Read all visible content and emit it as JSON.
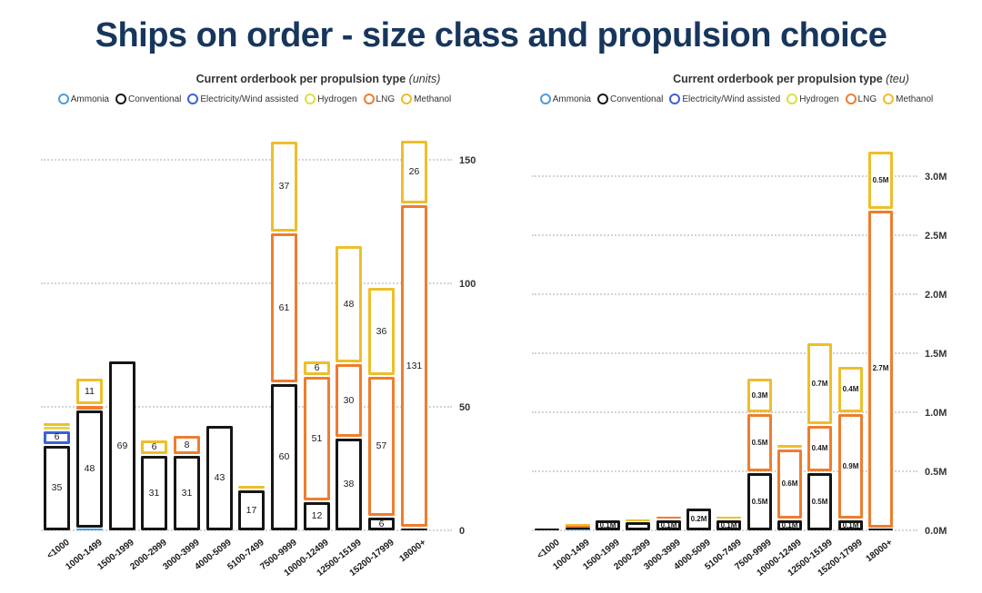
{
  "title": "Ships on order - size class and propulsion choice",
  "title_color": "#17365d",
  "series_colors": {
    "Ammonia": "#4d9bdf",
    "Conventional": "#151515",
    "Electricity/Wind assisted": "#3d62d6",
    "Hydrogen": "#dedc47",
    "LNG": "#ee7d2e",
    "Methanol": "#eebe29"
  },
  "legend": {
    "items": [
      "Ammonia",
      "Conventional",
      "Electricity/Wind assisted",
      "Hydrogen",
      "LNG",
      "Methanol"
    ]
  },
  "chart_data": [
    {
      "type": "bar",
      "stacked": true,
      "title": "Current orderbook per propulsion type",
      "unit_label": "(units)",
      "legend_position": "top",
      "grid": true,
      "ylim": [
        0,
        160
      ],
      "y_ticks": [
        {
          "v": 0,
          "label": "0"
        },
        {
          "v": 50,
          "label": "50"
        },
        {
          "v": 100,
          "label": "100"
        },
        {
          "v": 150,
          "label": "150"
        }
      ],
      "categories": [
        "<1000",
        "1000-1499",
        "1500-1999",
        "2000-2999",
        "3000-3999",
        "4000-5099",
        "5100-7499",
        "7500-9999",
        "10000-12499",
        "12500-15199",
        "15200-17999",
        "18000+"
      ],
      "series": [
        {
          "name": "Ammonia",
          "values": [
            0,
            1.2,
            0,
            0,
            0,
            0,
            0,
            0,
            0,
            0,
            0,
            0
          ],
          "labels": [
            "",
            "",
            "",
            "",
            "",
            "",
            "",
            "",
            "",
            "",
            "",
            ""
          ]
        },
        {
          "name": "Conventional",
          "values": [
            35,
            48,
            69,
            31,
            31,
            43,
            17,
            60,
            12,
            38,
            6,
            1.5
          ],
          "labels": [
            "35",
            "48",
            "69",
            "31",
            "31",
            "43",
            "17",
            "60",
            "12",
            "38",
            "6",
            ""
          ]
        },
        {
          "name": "Electricity/Wind assisted",
          "values": [
            6,
            0,
            0,
            0,
            0,
            0,
            0,
            0,
            0,
            0,
            0,
            0
          ],
          "labels": [
            "6",
            "",
            "",
            "",
            "",
            "",
            "",
            "",
            "",
            "",
            "",
            ""
          ]
        },
        {
          "name": "Hydrogen",
          "values": [
            1.5,
            0,
            0,
            0,
            0,
            0,
            0,
            0,
            0,
            0,
            0,
            0
          ],
          "labels": [
            "",
            "",
            "",
            "",
            "",
            "",
            "",
            "",
            "",
            "",
            "",
            ""
          ]
        },
        {
          "name": "LNG",
          "values": [
            0,
            2,
            0,
            0,
            8,
            0,
            0,
            61,
            51,
            30,
            57,
            131
          ],
          "labels": [
            "",
            "",
            "",
            "",
            "8",
            "",
            "",
            "61",
            "51",
            "30",
            "57",
            "131"
          ]
        },
        {
          "name": "Methanol",
          "values": [
            1.5,
            11,
            0,
            6,
            0,
            0,
            1.5,
            37,
            6,
            48,
            36,
            26
          ],
          "labels": [
            "",
            "11",
            "",
            "6",
            "",
            "",
            "",
            "37",
            "6",
            "48",
            "36",
            "26"
          ]
        }
      ]
    },
    {
      "type": "bar",
      "stacked": true,
      "title": "Current orderbook per propulsion type",
      "unit_label": "(teu)",
      "legend_position": "top",
      "grid": true,
      "ylim": [
        0,
        3.35
      ],
      "y_ticks": [
        {
          "v": 0,
          "label": "0.0M"
        },
        {
          "v": 0.5,
          "label": "0.5M"
        },
        {
          "v": 1,
          "label": "1.0M"
        },
        {
          "v": 1.5,
          "label": "1.5M"
        },
        {
          "v": 2,
          "label": "2.0M"
        },
        {
          "v": 2.5,
          "label": "2.5M"
        },
        {
          "v": 3,
          "label": "3.0M"
        }
      ],
      "categories": [
        "<1000",
        "1000-1499",
        "1500-1999",
        "2000-2999",
        "3000-3999",
        "4000-5099",
        "5100-7499",
        "7500-9999",
        "10000-12499",
        "12500-15199",
        "15200-17999",
        "18000+"
      ],
      "series": [
        {
          "name": "Ammonia",
          "values": [
            0,
            0.008,
            0,
            0,
            0,
            0,
            0,
            0,
            0,
            0,
            0,
            0
          ],
          "labels": [
            "",
            "",
            "",
            "",
            "",
            "",
            "",
            "",
            "",
            "",
            "",
            ""
          ]
        },
        {
          "name": "Conventional",
          "values": [
            0.012,
            0.02,
            0.1,
            0.08,
            0.1,
            0.2,
            0.1,
            0.5,
            0.1,
            0.5,
            0.1,
            0.025
          ],
          "labels": [
            "",
            "",
            "0.1M",
            "",
            "0.1M",
            "0.2M",
            "0.1M",
            "0.5M",
            "0.1M",
            "0.5M",
            "0.1M",
            ""
          ]
        },
        {
          "name": "Electricity/Wind assisted",
          "values": [
            0,
            0,
            0,
            0,
            0,
            0,
            0,
            0,
            0,
            0,
            0,
            0
          ],
          "labels": [
            "",
            "",
            "",
            "",
            "",
            "",
            "",
            "",
            "",
            "",
            "",
            ""
          ]
        },
        {
          "name": "Hydrogen",
          "values": [
            0,
            0,
            0,
            0,
            0,
            0,
            0,
            0,
            0,
            0,
            0,
            0
          ],
          "labels": [
            "",
            "",
            "",
            "",
            "",
            "",
            "",
            "",
            "",
            "",
            "",
            ""
          ]
        },
        {
          "name": "LNG",
          "values": [
            0,
            0.012,
            0,
            0,
            0.015,
            0,
            0,
            0.5,
            0.6,
            0.4,
            0.9,
            2.7
          ],
          "labels": [
            "",
            "",
            "",
            "",
            "",
            "",
            "",
            "0.5M",
            "0.6M",
            "0.4M",
            "0.9M",
            "2.7M"
          ]
        },
        {
          "name": "Methanol",
          "values": [
            0,
            0.012,
            0,
            0.015,
            0,
            0,
            0.015,
            0.3,
            0.04,
            0.7,
            0.4,
            0.5
          ],
          "labels": [
            "",
            "",
            "",
            "",
            "",
            "",
            "",
            "0.3M",
            "",
            "0.7M",
            "0.4M",
            "0.5M"
          ]
        }
      ]
    }
  ]
}
